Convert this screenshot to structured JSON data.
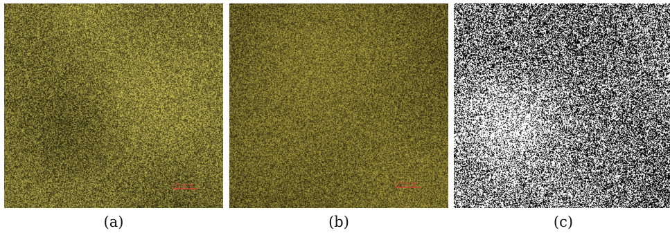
{
  "panels": [
    {
      "id": "a",
      "caption": "(a)",
      "kind": "micrograph",
      "tone_dark": "#1e1c0a",
      "tone_light": "#d4c85a"
    },
    {
      "id": "b",
      "caption": "(b)",
      "kind": "micrograph",
      "tone_dark": "#161408",
      "tone_light": "#aea040"
    },
    {
      "id": "c",
      "caption": "(c)",
      "kind": "binary",
      "tone_dark": "#000000",
      "tone_light": "#ffffff"
    }
  ],
  "scale_bar_color": "#c8483c"
}
